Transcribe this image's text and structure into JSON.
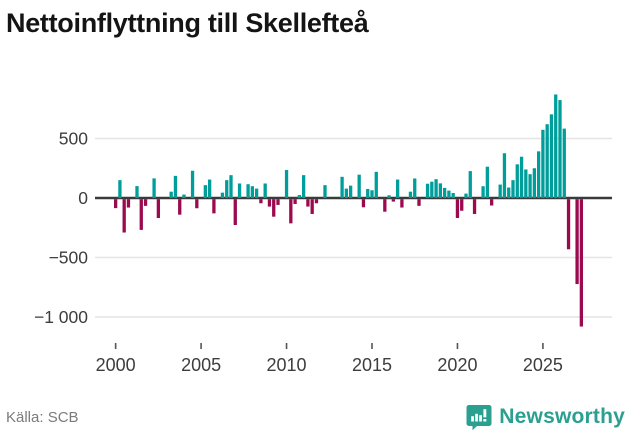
{
  "title": "Nettoinflyttning till Skellefteå",
  "footer": {
    "source": "Källa: SCB",
    "brand": "Newsworthy",
    "brand_icon": "bar-chart-speech-bubble",
    "brand_color": "#2ba091"
  },
  "colors": {
    "positive_bar": "#009e9b",
    "negative_bar": "#9b0a4e",
    "axis_line": "#3a3a3a",
    "gridline": "#e4e4e4",
    "tick_text": "#3d3d3d"
  },
  "chart_data": {
    "type": "bar",
    "title": "Nettoinflyttning till Skellefteå",
    "xlabel": "",
    "ylabel": "",
    "frequency": "quarterly",
    "x_range_labels": [
      "2000",
      "2025"
    ],
    "x_tick_labels": [
      "2000",
      "2005",
      "2010",
      "2015",
      "2020",
      "2025"
    ],
    "x_tick_slots": [
      0,
      20,
      40,
      60,
      80,
      100
    ],
    "y_tick_labels": [
      "500",
      "0",
      "−500",
      "−1 000"
    ],
    "y_tick_values": [
      500,
      0,
      -500,
      -1000
    ],
    "ylim": [
      -1150,
      950
    ],
    "grid": true,
    "legend": false,
    "values": [
      -75,
      150,
      -280,
      -70,
      0,
      100,
      -258,
      -56,
      0,
      165,
      -158,
      0,
      0,
      53,
      186,
      -130,
      29,
      0,
      229,
      -76,
      0,
      108,
      155,
      -119,
      0,
      45,
      150,
      192,
      -217,
      122,
      0,
      116,
      99,
      79,
      -34,
      122,
      -62,
      -147,
      -48,
      0,
      235,
      -203,
      -40,
      25,
      192,
      -62,
      -124,
      -34,
      0,
      108,
      0,
      0,
      0,
      178,
      79,
      104,
      0,
      196,
      -68,
      76,
      65,
      220,
      0,
      -105,
      23,
      -20,
      155,
      -70,
      0,
      53,
      164,
      -56,
      0,
      120,
      137,
      158,
      123,
      85,
      62,
      42,
      -158,
      -97,
      37,
      226,
      -124,
      0,
      99,
      263,
      -53,
      0,
      113,
      376,
      88,
      150,
      283,
      347,
      240,
      200,
      250,
      392,
      573,
      620,
      703,
      870,
      823,
      583,
      -421,
      0,
      -713,
      -1070
    ]
  }
}
